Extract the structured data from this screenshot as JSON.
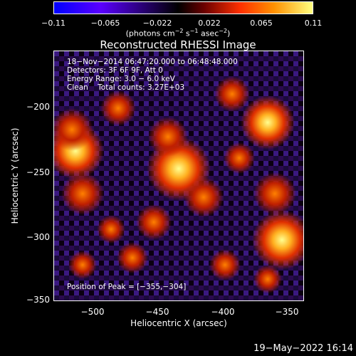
{
  "colorbar": {
    "ticks": [
      "−0.11",
      "−0.065",
      "−0.022",
      "0.022",
      "0.065",
      "0.11"
    ],
    "units_main": "(photons cm",
    "units_sup1": "−2",
    "units_s": " s",
    "units_sup2": "−1",
    "units_asec": " asec",
    "units_sup3": "−2",
    "units_close": ")"
  },
  "title": "Reconstructed RHESSI Image",
  "annotations": {
    "line1": "18−Nov−2014 06:47:20.000 to 06:48:48.000",
    "line2": "Detectors: 3F 6F 9F, Att 0",
    "line3": "Energy Range: 3.0 − 6.0 keV",
    "line4": "Clean    Total counts: 3.27E+03",
    "peak": "Position of Peak = [−355,−304]"
  },
  "axes": {
    "xlabel": "Heliocentric X (arcsec)",
    "ylabel": "Heliocentric Y (arcsec)",
    "xticks": [
      "−500",
      "−450",
      "−400",
      "−350"
    ],
    "yticks": [
      "−200",
      "−250",
      "−300",
      "−350"
    ]
  },
  "footer": {
    "timestamp": "19−May−2022 16:14"
  }
}
